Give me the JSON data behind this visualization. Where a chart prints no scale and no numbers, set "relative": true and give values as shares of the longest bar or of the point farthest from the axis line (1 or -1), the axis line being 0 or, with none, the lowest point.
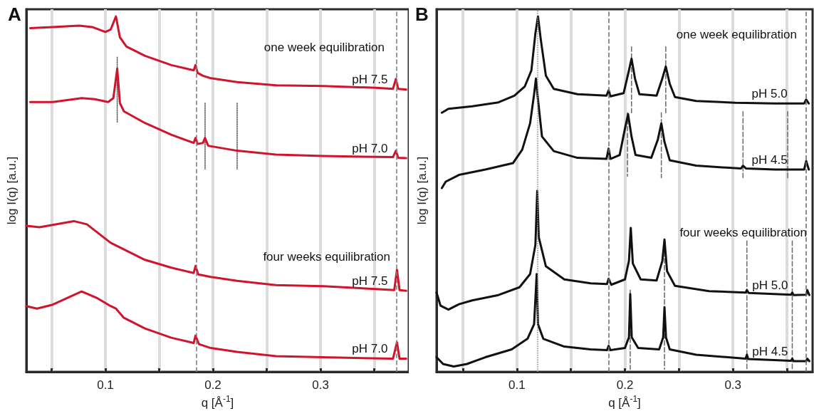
{
  "chart_data": [
    {
      "type": "line",
      "title": "A",
      "xlabel": "q [Å$^{-1}$]",
      "ylabel": "log I(q) [a.u.]",
      "relative": true,
      "tick_labels": "x",
      "grid": "x",
      "legend": false,
      "annotations": [
        "one week equilibration",
        "four weeks equilibration"
      ],
      "xlim": [
        0.0265,
        0.3821
      ],
      "xticks": [
        {
          "value": 0.05,
          "label": null
        },
        0.1,
        {
          "value": 0.15,
          "label": null
        },
        0.2,
        {
          "value": 0.25,
          "label": null
        },
        0.3,
        {
          "value": 0.35,
          "label": null
        }
      ],
      "ref_lines": [
        {
          "axis": "x",
          "value": 0.1845,
          "color": "#808080",
          "line_style": "dashed"
        },
        {
          "axis": "x",
          "value": 0.371,
          "color": "#808080",
          "line_style": "dashed"
        }
      ],
      "series": [
        {
          "name": "pH 7.5",
          "color": "#d0142c",
          "x": [
            0.0301,
            0.051,
            0.0755,
            0.0877,
            0.1,
            0.1049,
            0.1098,
            0.1135,
            0.1196,
            0.1368,
            0.1613,
            0.1821,
            0.1838,
            0.1858,
            0.1907,
            0.198,
            0.2225,
            0.2586,
            0.3025,
            0.3515,
            0.3674,
            0.3701,
            0.3723,
            0.3797
          ],
          "values": [
            0.967,
            0.97,
            0.974,
            0.97,
            0.956,
            0.963,
            1.0,
            0.941,
            0.915,
            0.889,
            0.863,
            0.848,
            0.863,
            0.841,
            0.833,
            0.826,
            0.815,
            0.806,
            0.804,
            0.799,
            0.796,
            0.824,
            0.796,
            0.794
          ]
        },
        {
          "name": "pH 7.0",
          "color": "#d0142c",
          "x": [
            0.0301,
            0.051,
            0.0779,
            0.0902,
            0.1025,
            0.1074,
            0.111,
            0.1135,
            0.1172,
            0.1368,
            0.1613,
            0.1821,
            0.1838,
            0.1858,
            0.1907,
            0.1926,
            0.1956,
            0.2225,
            0.2586,
            0.3025,
            0.3674,
            0.3701,
            0.3723,
            0.3797
          ],
          "values": [
            0.759,
            0.759,
            0.77,
            0.767,
            0.759,
            0.77,
            0.853,
            0.756,
            0.733,
            0.7,
            0.667,
            0.644,
            0.658,
            0.641,
            0.644,
            0.658,
            0.636,
            0.622,
            0.611,
            0.607,
            0.604,
            0.622,
            0.602,
            0.601
          ]
        },
        {
          "name": "pH 7.5",
          "color": "#d0142c",
          "x": [
            0.0265,
            0.0387,
            0.0706,
            0.0828,
            0.1049,
            0.1368,
            0.1613,
            0.1821,
            0.1838,
            0.1863,
            0.198,
            0.2225,
            0.2586,
            0.3025,
            0.3515,
            0.3686,
            0.3711,
            0.3735,
            0.3797
          ],
          "values": [
            0.411,
            0.407,
            0.424,
            0.415,
            0.363,
            0.315,
            0.293,
            0.278,
            0.298,
            0.274,
            0.267,
            0.256,
            0.244,
            0.241,
            0.233,
            0.23,
            0.287,
            0.23,
            0.228
          ]
        },
        {
          "name": "pH 7.0",
          "color": "#d0142c",
          "x": [
            0.0265,
            0.0363,
            0.051,
            0.0779,
            0.0926,
            0.1049,
            0.1098,
            0.1172,
            0.1368,
            0.1613,
            0.1821,
            0.1838,
            0.187,
            0.198,
            0.2225,
            0.2586,
            0.3025,
            0.3674,
            0.3711,
            0.3735,
            0.3797
          ],
          "values": [
            0.185,
            0.178,
            0.189,
            0.226,
            0.207,
            0.185,
            0.178,
            0.152,
            0.122,
            0.096,
            0.081,
            0.102,
            0.078,
            0.067,
            0.056,
            0.044,
            0.041,
            0.037,
            0.083,
            0.037,
            0.037
          ]
        },
        {
          "color": "#606060",
          "line_style": "dotted",
          "x": [
            0.111,
            0.111
          ],
          "values": [
            0.885,
            0.7
          ]
        },
        {
          "color": "#606060",
          "line_style": "dotted",
          "x": [
            0.1927,
            0.1927
          ],
          "values": [
            0.756,
            0.57
          ]
        },
        {
          "color": "#606060",
          "line_style": "dotted",
          "x": [
            0.2225,
            0.2225
          ],
          "values": [
            0.756,
            0.57
          ]
        }
      ]
    },
    {
      "type": "line",
      "title": "B",
      "xlabel": "q [Å$^{-1}$]",
      "ylabel": "log I(q) [a.u.]",
      "relative": true,
      "tick_labels": "x",
      "grid": "x",
      "legend": false,
      "annotations": [
        "one week equilibration",
        "four weeks equilibration"
      ],
      "xlim": [
        0.0256,
        0.3737
      ],
      "xticks": [
        {
          "value": 0.05,
          "label": null
        },
        0.1,
        {
          "value": 0.15,
          "label": null
        },
        0.2,
        {
          "value": 0.25,
          "label": null
        },
        0.3,
        {
          "value": 0.35,
          "label": null
        }
      ],
      "ref_lines": [
        {
          "axis": "x",
          "value": 0.1188,
          "color": "#909090",
          "line_style": "dotted"
        },
        {
          "axis": "x",
          "value": 0.1849,
          "color": "#707070",
          "line_style": "dashed"
        },
        {
          "axis": "x",
          "value": 0.3678,
          "color": "#707070",
          "line_style": "dashed"
        }
      ],
      "series": [
        {
          "name": "pH 5.0",
          "color": "#111111",
          "x": [
            0.0305,
            0.0366,
            0.0585,
            0.0829,
            0.0976,
            0.1073,
            0.1134,
            0.1171,
            0.1195,
            0.122,
            0.1268,
            0.1341,
            0.1561,
            0.1829,
            0.1849,
            0.1866,
            0.1988,
            0.2037,
            0.2061,
            0.2093,
            0.2134,
            0.2293,
            0.2346,
            0.2378,
            0.2415,
            0.2463,
            0.2659,
            0.3024,
            0.339,
            0.3659,
            0.3678,
            0.3702
          ],
          "values": [
            0.729,
            0.74,
            0.747,
            0.758,
            0.777,
            0.803,
            0.848,
            0.952,
            1.0,
            0.937,
            0.833,
            0.796,
            0.781,
            0.777,
            0.792,
            0.775,
            0.784,
            0.848,
            0.881,
            0.825,
            0.781,
            0.777,
            0.825,
            0.859,
            0.81,
            0.773,
            0.762,
            0.757,
            0.755,
            0.755,
            0.766,
            0.755
          ]
        },
        {
          "name": "pH 4.5",
          "color": "#111111",
          "x": [
            0.0305,
            0.0341,
            0.0463,
            0.0707,
            0.0963,
            0.1049,
            0.1122,
            0.1159,
            0.1176,
            0.1195,
            0.1232,
            0.1341,
            0.1561,
            0.1829,
            0.1849,
            0.1866,
            0.1951,
            0.2,
            0.2029,
            0.2061,
            0.2098,
            0.2244,
            0.2305,
            0.2337,
            0.2366,
            0.2415,
            0.2659,
            0.3073,
            0.3093,
            0.3122,
            0.339,
            0.3659,
            0.3678,
            0.3702
          ],
          "values": [
            0.517,
            0.535,
            0.554,
            0.569,
            0.587,
            0.625,
            0.699,
            0.781,
            0.825,
            0.766,
            0.662,
            0.621,
            0.602,
            0.599,
            0.628,
            0.599,
            0.61,
            0.684,
            0.725,
            0.662,
            0.61,
            0.602,
            0.654,
            0.699,
            0.647,
            0.595,
            0.58,
            0.572,
            0.58,
            0.572,
            0.569,
            0.569,
            0.593,
            0.569
          ]
        },
        {
          "name": "pH 5.0",
          "color": "#111111",
          "x": [
            0.0256,
            0.0293,
            0.0366,
            0.0463,
            0.0585,
            0.0829,
            0.1024,
            0.1122,
            0.1171,
            0.1188,
            0.1202,
            0.1268,
            0.1439,
            0.1683,
            0.1834,
            0.1849,
            0.1873,
            0.2,
            0.2037,
            0.2054,
            0.2073,
            0.2146,
            0.2293,
            0.2346,
            0.2366,
            0.239,
            0.2463,
            0.278,
            0.3117,
            0.3129,
            0.3146,
            0.3537,
            0.3549,
            0.3561,
            0.3678,
            0.3688,
            0.3707
          ],
          "values": [
            0.223,
            0.186,
            0.175,
            0.19,
            0.201,
            0.216,
            0.238,
            0.275,
            0.357,
            0.509,
            0.379,
            0.297,
            0.26,
            0.249,
            0.247,
            0.262,
            0.245,
            0.26,
            0.312,
            0.405,
            0.305,
            0.26,
            0.257,
            0.312,
            0.372,
            0.283,
            0.242,
            0.227,
            0.223,
            0.23,
            0.222,
            0.217,
            0.223,
            0.216,
            0.217,
            0.23,
            0.216
          ]
        },
        {
          "name": "pH 4.5",
          "color": "#111111",
          "x": [
            0.0256,
            0.0317,
            0.0415,
            0.0537,
            0.0707,
            0.0951,
            0.1098,
            0.1159,
            0.1183,
            0.1195,
            0.1244,
            0.1439,
            0.1683,
            0.1834,
            0.1849,
            0.1866,
            0.2,
            0.2037,
            0.2049,
            0.2063,
            0.2122,
            0.2317,
            0.2354,
            0.2366,
            0.238,
            0.2415,
            0.2659,
            0.3117,
            0.3129,
            0.3141,
            0.3537,
            0.3549,
            0.3561,
            0.3678,
            0.3688,
            0.3707
          ],
          "values": [
            0.041,
            0.022,
            0.015,
            0.022,
            0.041,
            0.063,
            0.093,
            0.134,
            0.275,
            0.134,
            0.093,
            0.071,
            0.063,
            0.061,
            0.073,
            0.061,
            0.067,
            0.097,
            0.219,
            0.097,
            0.067,
            0.063,
            0.097,
            0.182,
            0.097,
            0.063,
            0.048,
            0.037,
            0.048,
            0.036,
            0.031,
            0.037,
            0.03,
            0.03,
            0.037,
            0.03
          ]
        },
        {
          "color": "#707070",
          "line_style": "dashed",
          "x": [
            0.2061,
            0.2061
          ],
          "values": [
            0.914,
            0.729
          ]
        },
        {
          "color": "#707070",
          "line_style": "dashed",
          "x": [
            0.2378,
            0.2378
          ],
          "values": [
            0.914,
            0.729
          ]
        },
        {
          "color": "#707070",
          "line_style": "dashed",
          "x": [
            0.2024,
            0.2024
          ],
          "values": [
            0.729,
            0.55
          ]
        },
        {
          "color": "#707070",
          "line_style": "dashed",
          "x": [
            0.2337,
            0.2337
          ],
          "values": [
            0.729,
            0.546
          ]
        },
        {
          "color": "#707070",
          "line_style": "dashed",
          "x": [
            0.3093,
            0.3093
          ],
          "values": [
            0.732,
            0.546
          ]
        },
        {
          "color": "#707070",
          "line_style": "dashed",
          "x": [
            0.3507,
            0.3507
          ],
          "values": [
            0.732,
            0.546
          ]
        },
        {
          "color": "#707070",
          "line_style": "dashed",
          "x": [
            0.2049,
            0.2049
          ],
          "values": [
            0.23,
            0.007
          ]
        },
        {
          "color": "#707070",
          "line_style": "dashed",
          "x": [
            0.2366,
            0.2366
          ],
          "values": [
            0.357,
            0.007
          ]
        },
        {
          "color": "#707070",
          "line_style": "dashed",
          "x": [
            0.3129,
            0.3129
          ],
          "values": [
            0.368,
            0.007
          ]
        },
        {
          "color": "#707070",
          "line_style": "dashed",
          "x": [
            0.3549,
            0.3549
          ],
          "values": [
            0.368,
            0.007
          ]
        }
      ]
    }
  ]
}
